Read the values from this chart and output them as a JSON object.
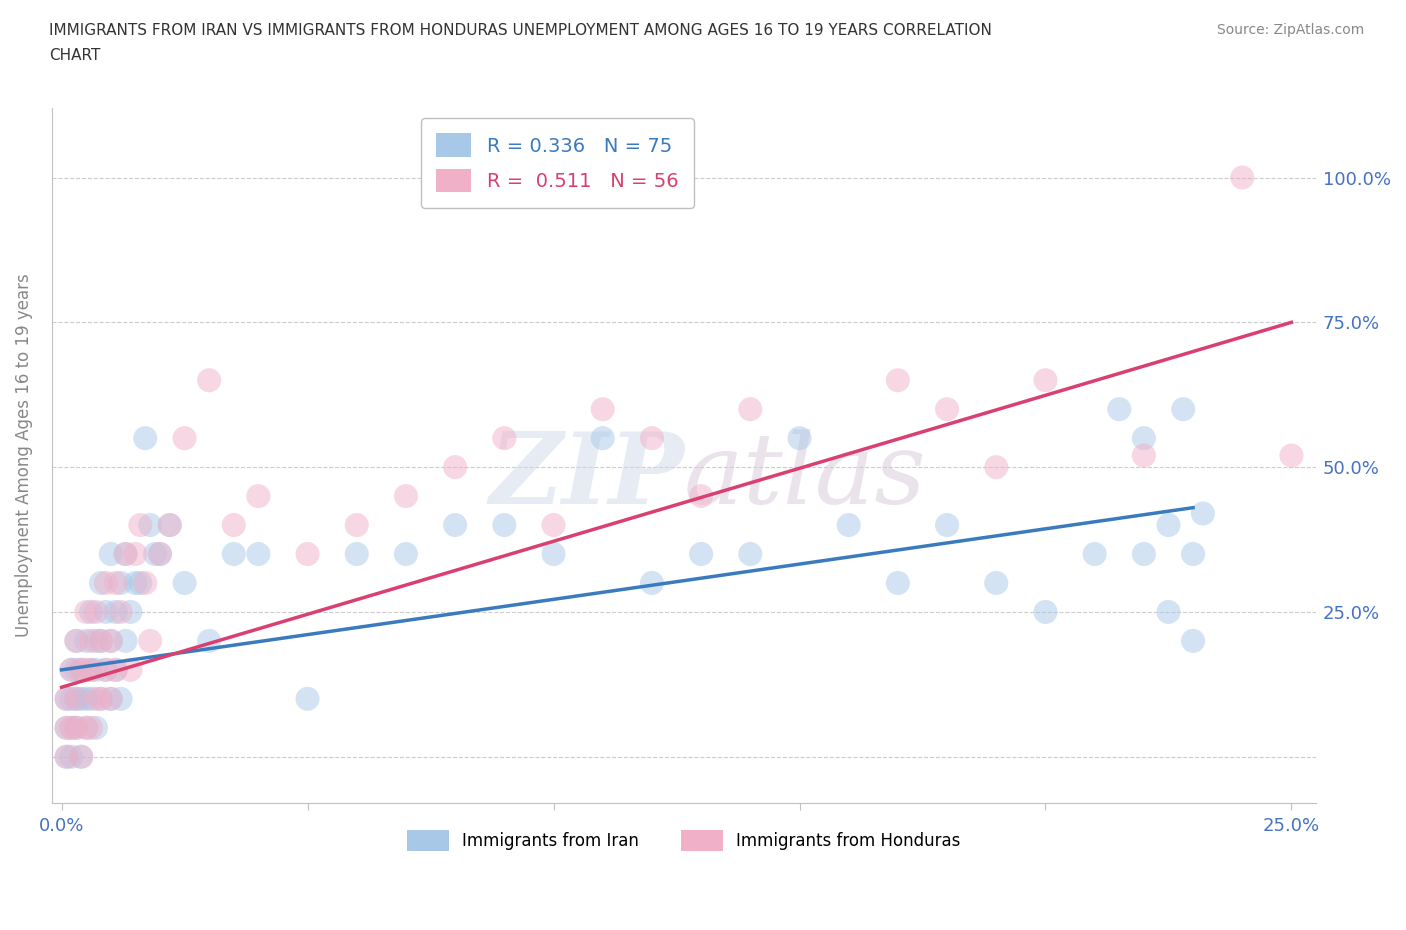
{
  "title_line1": "IMMIGRANTS FROM IRAN VS IMMIGRANTS FROM HONDURAS UNEMPLOYMENT AMONG AGES 16 TO 19 YEARS CORRELATION",
  "title_line2": "CHART",
  "source_text": "Source: ZipAtlas.com",
  "ylabel": "Unemployment Among Ages 16 to 19 years",
  "xlim": [
    -0.002,
    0.255
  ],
  "ylim": [
    -0.08,
    1.12
  ],
  "xticks": [
    0.0,
    0.05,
    0.1,
    0.15,
    0.2,
    0.25
  ],
  "yticks": [
    0.0,
    0.25,
    0.5,
    0.75,
    1.0
  ],
  "xticklabels": [
    "0.0%",
    "",
    "",
    "",
    "",
    "25.0%"
  ],
  "yticklabels": [
    "",
    "25.0%",
    "50.0%",
    "75.0%",
    "100.0%"
  ],
  "iran_R": 0.336,
  "iran_N": 75,
  "honduras_R": 0.511,
  "honduras_N": 56,
  "iran_color": "#a8c8e8",
  "honduras_color": "#f0b0c8",
  "trendline_iran_color": "#3a7abf",
  "trendline_honduras_color": "#d94070",
  "legend_label_iran": "Immigrants from Iran",
  "legend_label_honduras": "Immigrants from Honduras",
  "iran_x": [
    0.001,
    0.001,
    0.001,
    0.002,
    0.002,
    0.002,
    0.002,
    0.003,
    0.003,
    0.003,
    0.003,
    0.004,
    0.004,
    0.004,
    0.005,
    0.005,
    0.005,
    0.006,
    0.006,
    0.006,
    0.007,
    0.007,
    0.007,
    0.008,
    0.008,
    0.008,
    0.009,
    0.009,
    0.01,
    0.01,
    0.01,
    0.011,
    0.011,
    0.012,
    0.012,
    0.013,
    0.013,
    0.014,
    0.015,
    0.016,
    0.017,
    0.018,
    0.019,
    0.02,
    0.022,
    0.025,
    0.03,
    0.035,
    0.04,
    0.05,
    0.06,
    0.07,
    0.08,
    0.09,
    0.1,
    0.11,
    0.12,
    0.13,
    0.14,
    0.15,
    0.16,
    0.17,
    0.18,
    0.19,
    0.2,
    0.21,
    0.215,
    0.22,
    0.22,
    0.225,
    0.225,
    0.228,
    0.23,
    0.23,
    0.232
  ],
  "iran_y": [
    0.0,
    0.05,
    0.1,
    0.0,
    0.05,
    0.1,
    0.15,
    0.05,
    0.1,
    0.15,
    0.2,
    0.0,
    0.1,
    0.15,
    0.05,
    0.1,
    0.2,
    0.1,
    0.15,
    0.25,
    0.05,
    0.15,
    0.2,
    0.1,
    0.2,
    0.3,
    0.15,
    0.25,
    0.1,
    0.2,
    0.35,
    0.15,
    0.25,
    0.1,
    0.3,
    0.2,
    0.35,
    0.25,
    0.3,
    0.3,
    0.55,
    0.4,
    0.35,
    0.35,
    0.4,
    0.3,
    0.2,
    0.35,
    0.35,
    0.1,
    0.35,
    0.35,
    0.4,
    0.4,
    0.35,
    0.55,
    0.3,
    0.35,
    0.35,
    0.55,
    0.4,
    0.3,
    0.4,
    0.3,
    0.25,
    0.35,
    0.6,
    0.35,
    0.55,
    0.4,
    0.25,
    0.6,
    0.35,
    0.2,
    0.42
  ],
  "honduras_x": [
    0.001,
    0.001,
    0.001,
    0.002,
    0.002,
    0.003,
    0.003,
    0.003,
    0.004,
    0.004,
    0.005,
    0.005,
    0.005,
    0.006,
    0.006,
    0.006,
    0.007,
    0.007,
    0.008,
    0.008,
    0.009,
    0.009,
    0.01,
    0.01,
    0.011,
    0.011,
    0.012,
    0.013,
    0.014,
    0.015,
    0.016,
    0.017,
    0.018,
    0.02,
    0.022,
    0.025,
    0.03,
    0.035,
    0.04,
    0.05,
    0.06,
    0.07,
    0.08,
    0.09,
    0.1,
    0.11,
    0.12,
    0.13,
    0.14,
    0.17,
    0.18,
    0.19,
    0.2,
    0.22,
    0.24,
    0.25
  ],
  "honduras_y": [
    0.0,
    0.05,
    0.1,
    0.05,
    0.15,
    0.05,
    0.1,
    0.2,
    0.0,
    0.15,
    0.05,
    0.15,
    0.25,
    0.05,
    0.15,
    0.2,
    0.1,
    0.25,
    0.1,
    0.2,
    0.15,
    0.3,
    0.1,
    0.2,
    0.15,
    0.3,
    0.25,
    0.35,
    0.15,
    0.35,
    0.4,
    0.3,
    0.2,
    0.35,
    0.4,
    0.55,
    0.65,
    0.4,
    0.45,
    0.35,
    0.4,
    0.45,
    0.5,
    0.55,
    0.4,
    0.6,
    0.55,
    0.45,
    0.6,
    0.65,
    0.6,
    0.5,
    0.65,
    0.52,
    1.0,
    0.52
  ]
}
